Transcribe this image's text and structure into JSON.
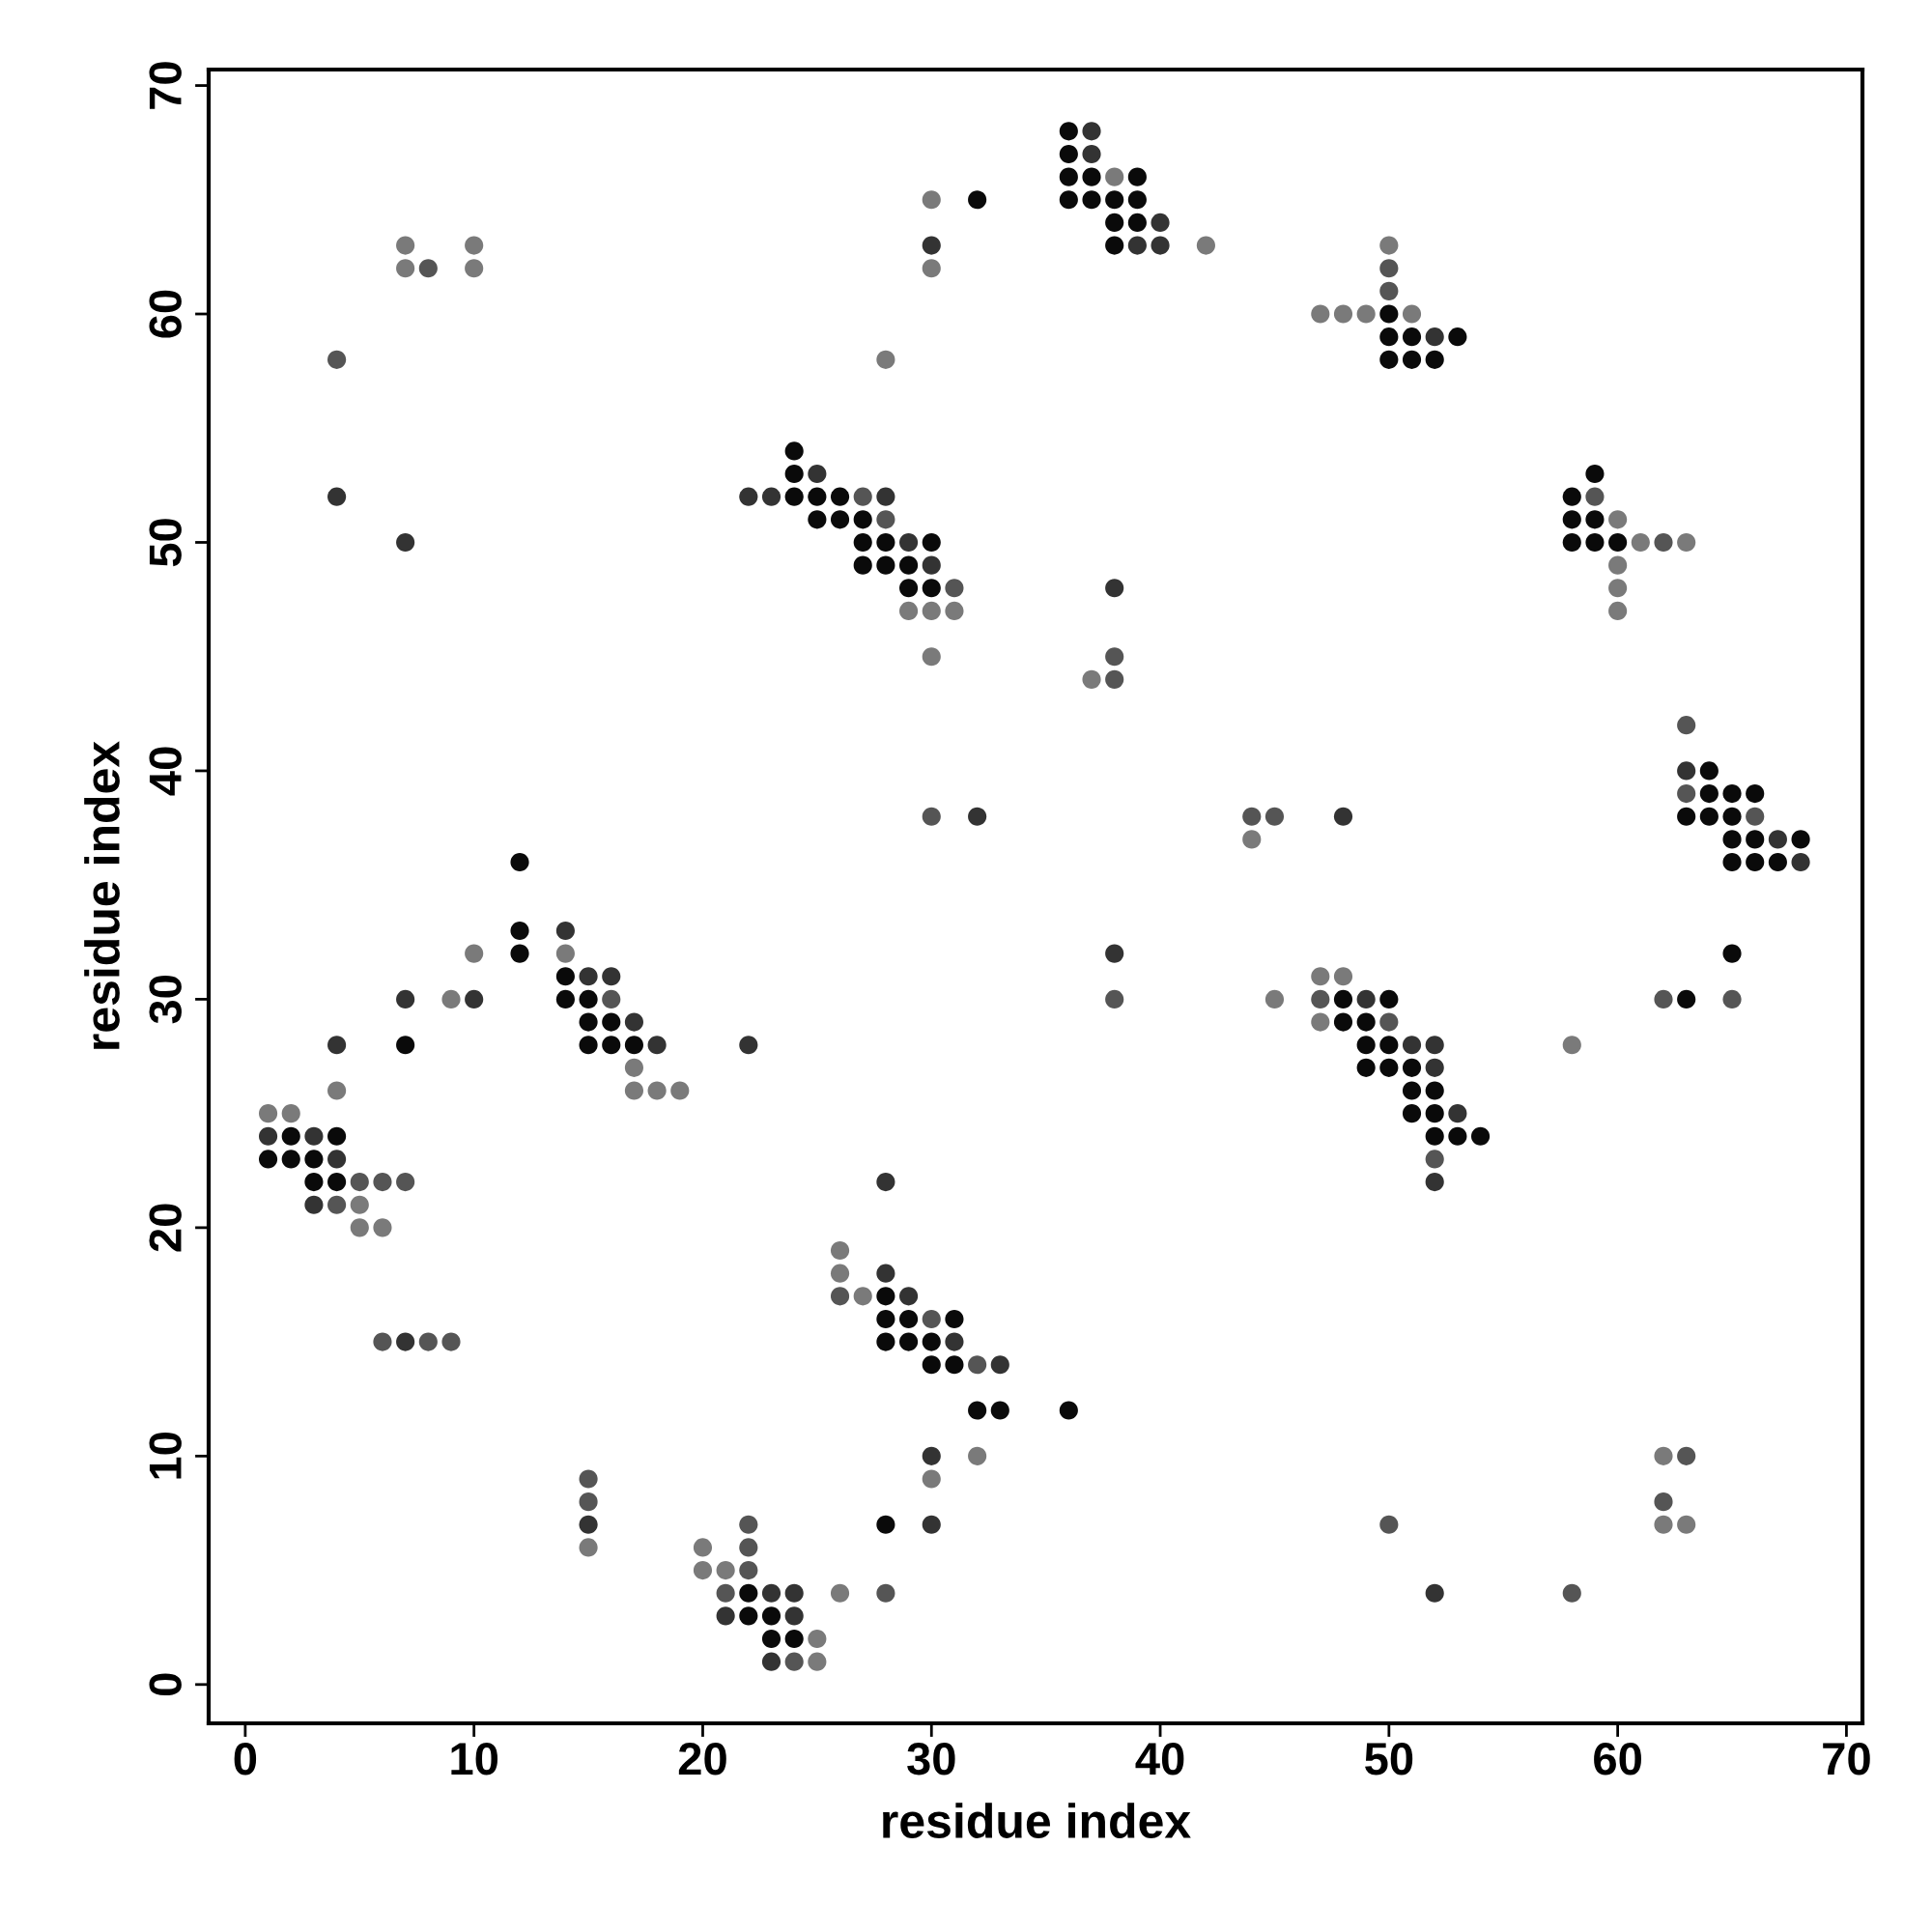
{
  "chart_data": {
    "type": "scatter",
    "xlabel": "residue index",
    "ylabel": "residue index",
    "xlim": [
      -1.6,
      70.7
    ],
    "ylim": [
      -1.7,
      70.7
    ],
    "xticks": [
      0,
      10,
      20,
      30,
      40,
      50,
      60,
      70
    ],
    "yticks": [
      0,
      10,
      20,
      30,
      40,
      50,
      60,
      70
    ],
    "grid": false,
    "marker": "circle",
    "series": [
      {
        "color": "#0a0a0a",
        "x": [
          32,
          36,
          36,
          36,
          37,
          39,
          36,
          37,
          38,
          39,
          38,
          39,
          38,
          50,
          50,
          51,
          53,
          50,
          51,
          52,
          24,
          24,
          24,
          25,
          26,
          25,
          26,
          27,
          27,
          28,
          30,
          27,
          28,
          29,
          29,
          30,
          59,
          58,
          58,
          59,
          58,
          59,
          60,
          64,
          64,
          65,
          66,
          63,
          64,
          65,
          65,
          66,
          68,
          65,
          66,
          67,
          12,
          12,
          12,
          14,
          14,
          15,
          15,
          16,
          15,
          16,
          17,
          7,
          48,
          50,
          48,
          49,
          49,
          50,
          49,
          50,
          51,
          51,
          52,
          51,
          52,
          52,
          53,
          54,
          65,
          63,
          2,
          4,
          1,
          2,
          3,
          3,
          4,
          28,
          28,
          29,
          31,
          28,
          29,
          30,
          30,
          31,
          32,
          33,
          36,
          22,
          22,
          23,
          23,
          24,
          28
        ],
        "values": [
          65,
          68,
          67,
          66,
          66,
          66,
          65,
          65,
          65,
          65,
          64,
          64,
          63,
          60,
          59,
          59,
          59,
          58,
          58,
          58,
          54,
          53,
          52,
          52,
          52,
          51,
          51,
          51,
          50,
          50,
          50,
          49,
          49,
          49,
          48,
          48,
          53,
          52,
          51,
          51,
          50,
          50,
          50,
          40,
          39,
          39,
          39,
          38,
          38,
          38,
          37,
          37,
          37,
          36,
          36,
          36,
          36,
          33,
          32,
          31,
          30,
          30,
          29,
          29,
          28,
          28,
          28,
          28,
          30,
          30,
          29,
          29,
          28,
          28,
          27,
          27,
          27,
          26,
          26,
          25,
          25,
          24,
          24,
          24,
          32,
          30,
          24,
          24,
          23,
          23,
          23,
          22,
          22,
          17,
          16,
          16,
          16,
          15,
          15,
          15,
          14,
          14,
          12,
          12,
          12,
          4,
          3,
          3,
          2,
          2,
          7
        ]
      },
      {
        "color": "#333333",
        "x": [
          37,
          37,
          40,
          39,
          40,
          30,
          52,
          25,
          22,
          23,
          28,
          29,
          30,
          38,
          4,
          7,
          63,
          67,
          68,
          32,
          48,
          14,
          15,
          16,
          17,
          18,
          7,
          10,
          4,
          22,
          38,
          49,
          51,
          52,
          52,
          53,
          52,
          1,
          3,
          4,
          3,
          7,
          28,
          29,
          28,
          31,
          33,
          30,
          15,
          23,
          24,
          21,
          24,
          23,
          30,
          52
        ],
        "values": [
          68,
          67,
          64,
          63,
          63,
          63,
          59,
          53,
          52,
          52,
          52,
          50,
          49,
          48,
          52,
          50,
          40,
          37,
          36,
          38,
          38,
          33,
          31,
          31,
          29,
          28,
          30,
          30,
          28,
          28,
          32,
          30,
          28,
          28,
          27,
          25,
          22,
          24,
          24,
          23,
          21,
          15,
          22,
          17,
          18,
          15,
          14,
          10,
          7,
          4,
          4,
          3,
          3,
          1,
          7,
          4
        ]
      },
      {
        "color": "#555555",
        "x": [
          8,
          4,
          50,
          50,
          27,
          28,
          31,
          38,
          38,
          59,
          62,
          63,
          63,
          66,
          30,
          44,
          45,
          16,
          38,
          47,
          50,
          52,
          62,
          65,
          5,
          6,
          7,
          4,
          6,
          8,
          9,
          26,
          30,
          32,
          15,
          15,
          22,
          22,
          22,
          21,
          24,
          28,
          50,
          58,
          63,
          62
        ],
        "values": [
          62,
          58,
          62,
          61,
          52,
          51,
          48,
          45,
          44,
          52,
          50,
          42,
          39,
          38,
          38,
          38,
          38,
          30,
          30,
          30,
          29,
          23,
          30,
          30,
          22,
          22,
          22,
          21,
          15,
          15,
          15,
          17,
          16,
          14,
          9,
          8,
          7,
          6,
          5,
          4,
          1,
          4,
          7,
          4,
          10,
          8
        ]
      },
      {
        "color": "#7a7a7a",
        "x": [
          7,
          7,
          10,
          10,
          30,
          30,
          28,
          38,
          42,
          50,
          47,
          48,
          49,
          51,
          29,
          30,
          31,
          30,
          37,
          60,
          61,
          63,
          60,
          60,
          60,
          44,
          10,
          14,
          17,
          17,
          18,
          19,
          9,
          4,
          45,
          47,
          48,
          47,
          58,
          1,
          2,
          5,
          5,
          6,
          26,
          26,
          27,
          32,
          30,
          15,
          20,
          20,
          21,
          25,
          25,
          26,
          62,
          62,
          63
        ],
        "values": [
          63,
          62,
          63,
          62,
          65,
          62,
          58,
          66,
          63,
          63,
          60,
          60,
          60,
          60,
          47,
          47,
          47,
          45,
          44,
          51,
          50,
          50,
          49,
          48,
          47,
          37,
          32,
          32,
          27,
          26,
          26,
          26,
          30,
          26,
          30,
          31,
          31,
          29,
          28,
          25,
          25,
          21,
          20,
          20,
          19,
          18,
          17,
          10,
          9,
          6,
          6,
          5,
          5,
          2,
          1,
          4,
          10,
          7,
          7
        ]
      }
    ]
  }
}
